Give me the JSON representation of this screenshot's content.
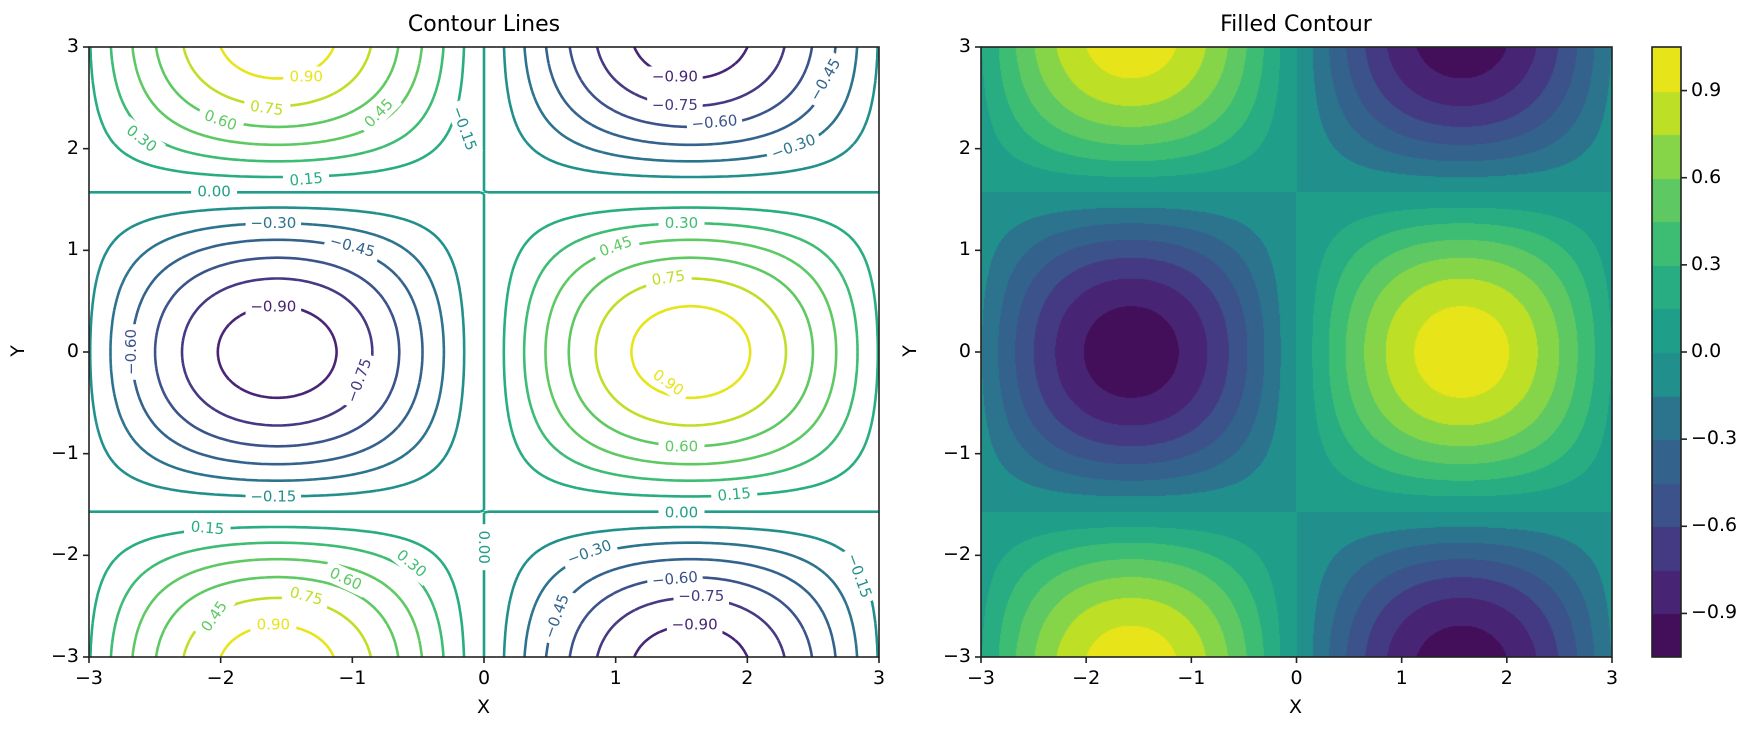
{
  "figure": {
    "left_title": "Contour Lines",
    "right_title": "Filled Contour"
  },
  "chart_data": [
    {
      "type": "contour",
      "title": "Contour Lines",
      "xlabel": "X",
      "ylabel": "Y",
      "function": "sin(x)*cos(y)",
      "xlim": [
        -3,
        3
      ],
      "ylim": [
        -3,
        3
      ],
      "xticks": [
        "−3",
        "−2",
        "−1",
        "0",
        "1",
        "2",
        "3"
      ],
      "yticks": [
        "−3",
        "−2",
        "−1",
        "0",
        "1",
        "2",
        "3"
      ],
      "levels": [
        -0.9,
        -0.75,
        -0.6,
        -0.45,
        -0.3,
        -0.15,
        0.0,
        0.15,
        0.3,
        0.45,
        0.6,
        0.75,
        0.9
      ],
      "level_labels": [
        "−0.90",
        "−0.75",
        "−0.60",
        "−0.45",
        "−0.30",
        "−0.15",
        "0.00",
        "0.15",
        "0.30",
        "0.45",
        "0.60",
        "0.75",
        "0.90"
      ],
      "colormap": "viridis",
      "grid": false
    },
    {
      "type": "heatmap",
      "subtype": "filled_contour",
      "title": "Filled Contour",
      "xlabel": "X",
      "ylabel": "Y",
      "function": "sin(x)*cos(y)",
      "xlim": [
        -3,
        3
      ],
      "ylim": [
        -3,
        3
      ],
      "xticks": [
        "−3",
        "−2",
        "−1",
        "0",
        "1",
        "2",
        "3"
      ],
      "yticks": [
        "−3",
        "−2",
        "−1",
        "0",
        "1",
        "2",
        "3"
      ],
      "levels": [
        -1.05,
        -0.9,
        -0.75,
        -0.6,
        -0.45,
        -0.3,
        -0.15,
        0.0,
        0.15,
        0.3,
        0.45,
        0.6,
        0.75,
        0.9,
        1.05
      ],
      "band_colors": [
        "#440f5a",
        "#482475",
        "#443a83",
        "#3b528b",
        "#33638d",
        "#2c738e",
        "#21908d",
        "#1f9e89",
        "#27ad81",
        "#3dbc74",
        "#5ec962",
        "#86d549",
        "#bddf26",
        "#e7e419"
      ],
      "colorbar": {
        "ticks": [
          -0.9,
          -0.6,
          -0.3,
          0.0,
          0.3,
          0.6,
          0.9
        ],
        "tick_labels": [
          "−0.9",
          "−0.6",
          "−0.3",
          "0.0",
          "0.3",
          "0.6",
          "0.9"
        ],
        "range": [
          -1.05,
          1.05
        ]
      },
      "grid": false
    }
  ]
}
